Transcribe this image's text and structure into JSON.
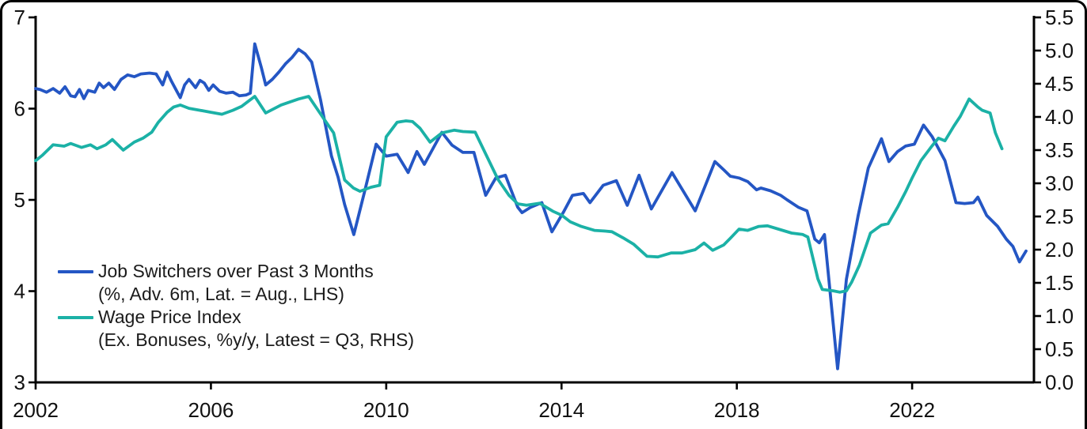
{
  "window": {
    "background": "#ffffff",
    "frame_border_color": "#000000"
  },
  "chart_data": {
    "type": "line",
    "title": "",
    "grid": false,
    "legend_position": "inside-bottom-left",
    "axis_color": "#000000",
    "x_axis": {
      "range": [
        2002,
        2024.78
      ],
      "ticks": [
        [
          2002,
          "2002"
        ],
        [
          2006,
          "2006"
        ],
        [
          2010,
          "2010"
        ],
        [
          2014,
          "2014"
        ],
        [
          2018,
          "2018"
        ],
        [
          2022,
          "2022"
        ]
      ]
    },
    "left_axis": {
      "range": [
        3,
        7
      ],
      "ticks": [
        [
          7,
          "7"
        ],
        [
          6,
          "6"
        ],
        [
          5,
          "5"
        ],
        [
          4,
          "4"
        ],
        [
          3,
          "3"
        ]
      ]
    },
    "right_axis": {
      "range": [
        0,
        5.5
      ],
      "ticks": [
        [
          5.5,
          "5.5"
        ],
        [
          5.0,
          "5.0"
        ],
        [
          4.5,
          "4.5"
        ],
        [
          4.0,
          "4.0"
        ],
        [
          3.5,
          "3.5"
        ],
        [
          3.0,
          "3.0"
        ],
        [
          2.5,
          "2.5"
        ],
        [
          2.0,
          "2.0"
        ],
        [
          1.5,
          "1.5"
        ],
        [
          1.0,
          "1.0"
        ],
        [
          0.5,
          "0.5"
        ],
        [
          0.0,
          "0.0"
        ]
      ]
    },
    "series": [
      {
        "name": "Job Switchers over Past 3 Months",
        "axis": "left",
        "color": "#2456C4",
        "points": [
          [
            2002.0,
            6.22
          ],
          [
            2002.1,
            6.21
          ],
          [
            2002.25,
            6.18
          ],
          [
            2002.4,
            6.22
          ],
          [
            2002.55,
            6.17
          ],
          [
            2002.67,
            6.24
          ],
          [
            2002.8,
            6.14
          ],
          [
            2002.9,
            6.13
          ],
          [
            2003.0,
            6.21
          ],
          [
            2003.1,
            6.11
          ],
          [
            2003.2,
            6.2
          ],
          [
            2003.35,
            6.18
          ],
          [
            2003.45,
            6.28
          ],
          [
            2003.55,
            6.23
          ],
          [
            2003.67,
            6.28
          ],
          [
            2003.8,
            6.21
          ],
          [
            2003.95,
            6.32
          ],
          [
            2004.1,
            6.37
          ],
          [
            2004.25,
            6.35
          ],
          [
            2004.4,
            6.38
          ],
          [
            2004.6,
            6.39
          ],
          [
            2004.75,
            6.38
          ],
          [
            2004.9,
            6.26
          ],
          [
            2005.0,
            6.4
          ],
          [
            2005.1,
            6.3
          ],
          [
            2005.2,
            6.21
          ],
          [
            2005.3,
            6.12
          ],
          [
            2005.4,
            6.26
          ],
          [
            2005.5,
            6.32
          ],
          [
            2005.65,
            6.23
          ],
          [
            2005.75,
            6.31
          ],
          [
            2005.85,
            6.28
          ],
          [
            2005.95,
            6.2
          ],
          [
            2006.05,
            6.26
          ],
          [
            2006.2,
            6.19
          ],
          [
            2006.35,
            6.17
          ],
          [
            2006.5,
            6.18
          ],
          [
            2006.65,
            6.14
          ],
          [
            2006.8,
            6.15
          ],
          [
            2006.9,
            6.17
          ],
          [
            2007.0,
            6.71
          ],
          [
            2007.15,
            6.45
          ],
          [
            2007.25,
            6.26
          ],
          [
            2007.4,
            6.32
          ],
          [
            2007.55,
            6.4
          ],
          [
            2007.7,
            6.49
          ],
          [
            2007.85,
            6.56
          ],
          [
            2008.0,
            6.65
          ],
          [
            2008.15,
            6.6
          ],
          [
            2008.3,
            6.51
          ],
          [
            2008.5,
            6.1
          ],
          [
            2008.75,
            5.48
          ],
          [
            2008.9,
            5.25
          ],
          [
            2009.05,
            4.95
          ],
          [
            2009.26,
            4.62
          ],
          [
            2009.5,
            5.08
          ],
          [
            2009.77,
            5.61
          ],
          [
            2010.0,
            5.48
          ],
          [
            2010.25,
            5.5
          ],
          [
            2010.5,
            5.3
          ],
          [
            2010.7,
            5.53
          ],
          [
            2010.87,
            5.39
          ],
          [
            2011.27,
            5.74
          ],
          [
            2011.5,
            5.6
          ],
          [
            2011.75,
            5.52
          ],
          [
            2012.0,
            5.52
          ],
          [
            2012.27,
            5.05
          ],
          [
            2012.5,
            5.24
          ],
          [
            2012.72,
            5.27
          ],
          [
            2013.0,
            4.92
          ],
          [
            2013.1,
            4.86
          ],
          [
            2013.3,
            4.92
          ],
          [
            2013.55,
            4.97
          ],
          [
            2013.78,
            4.65
          ],
          [
            2014.05,
            4.87
          ],
          [
            2014.25,
            5.05
          ],
          [
            2014.5,
            5.07
          ],
          [
            2014.65,
            4.97
          ],
          [
            2014.95,
            5.16
          ],
          [
            2015.25,
            5.21
          ],
          [
            2015.5,
            4.94
          ],
          [
            2015.77,
            5.27
          ],
          [
            2016.05,
            4.9
          ],
          [
            2016.52,
            5.3
          ],
          [
            2017.05,
            4.88
          ],
          [
            2017.5,
            5.42
          ],
          [
            2017.7,
            5.33
          ],
          [
            2017.85,
            5.26
          ],
          [
            2018.05,
            5.24
          ],
          [
            2018.25,
            5.2
          ],
          [
            2018.45,
            5.11
          ],
          [
            2018.55,
            5.13
          ],
          [
            2018.77,
            5.1
          ],
          [
            2019.0,
            5.05
          ],
          [
            2019.15,
            5.0
          ],
          [
            2019.4,
            4.92
          ],
          [
            2019.6,
            4.88
          ],
          [
            2019.78,
            4.57
          ],
          [
            2019.88,
            4.53
          ],
          [
            2020.0,
            4.62
          ],
          [
            2020.3,
            3.15
          ],
          [
            2020.5,
            4.13
          ],
          [
            2020.77,
            4.83
          ],
          [
            2021.0,
            5.35
          ],
          [
            2021.3,
            5.67
          ],
          [
            2021.47,
            5.42
          ],
          [
            2021.67,
            5.53
          ],
          [
            2021.85,
            5.59
          ],
          [
            2022.05,
            5.61
          ],
          [
            2022.26,
            5.82
          ],
          [
            2022.46,
            5.69
          ],
          [
            2022.75,
            5.43
          ],
          [
            2023.0,
            4.97
          ],
          [
            2023.2,
            4.96
          ],
          [
            2023.4,
            4.97
          ],
          [
            2023.5,
            5.03
          ],
          [
            2023.7,
            4.83
          ],
          [
            2023.95,
            4.71
          ],
          [
            2024.15,
            4.57
          ],
          [
            2024.3,
            4.49
          ],
          [
            2024.45,
            4.32
          ],
          [
            2024.6,
            4.44
          ]
        ]
      },
      {
        "name": "Wage Price Index",
        "axis": "right",
        "color": "#1BB1A6",
        "points": [
          [
            2002.0,
            3.34
          ],
          [
            2002.15,
            3.42
          ],
          [
            2002.4,
            3.58
          ],
          [
            2002.65,
            3.56
          ],
          [
            2002.8,
            3.6
          ],
          [
            2003.05,
            3.54
          ],
          [
            2003.25,
            3.58
          ],
          [
            2003.4,
            3.52
          ],
          [
            2003.6,
            3.58
          ],
          [
            2003.75,
            3.66
          ],
          [
            2004.0,
            3.5
          ],
          [
            2004.25,
            3.62
          ],
          [
            2004.45,
            3.68
          ],
          [
            2004.65,
            3.77
          ],
          [
            2004.8,
            3.92
          ],
          [
            2005.0,
            4.07
          ],
          [
            2005.15,
            4.15
          ],
          [
            2005.3,
            4.18
          ],
          [
            2005.5,
            4.13
          ],
          [
            2005.75,
            4.1
          ],
          [
            2006.0,
            4.07
          ],
          [
            2006.25,
            4.04
          ],
          [
            2006.5,
            4.1
          ],
          [
            2006.7,
            4.16
          ],
          [
            2007.0,
            4.31
          ],
          [
            2007.25,
            4.06
          ],
          [
            2007.6,
            4.18
          ],
          [
            2008.0,
            4.27
          ],
          [
            2008.23,
            4.31
          ],
          [
            2008.6,
            3.95
          ],
          [
            2008.8,
            3.76
          ],
          [
            2009.05,
            3.05
          ],
          [
            2009.25,
            2.93
          ],
          [
            2009.4,
            2.88
          ],
          [
            2009.65,
            2.94
          ],
          [
            2009.85,
            2.97
          ],
          [
            2010.0,
            3.7
          ],
          [
            2010.25,
            3.92
          ],
          [
            2010.45,
            3.94
          ],
          [
            2010.6,
            3.93
          ],
          [
            2010.77,
            3.83
          ],
          [
            2011.0,
            3.62
          ],
          [
            2011.27,
            3.76
          ],
          [
            2011.55,
            3.8
          ],
          [
            2011.75,
            3.78
          ],
          [
            2012.03,
            3.77
          ],
          [
            2012.55,
            3.06
          ],
          [
            2012.8,
            2.82
          ],
          [
            2013.0,
            2.69
          ],
          [
            2013.2,
            2.67
          ],
          [
            2013.5,
            2.7
          ],
          [
            2013.8,
            2.58
          ],
          [
            2014.0,
            2.52
          ],
          [
            2014.2,
            2.42
          ],
          [
            2014.45,
            2.35
          ],
          [
            2014.75,
            2.29
          ],
          [
            2015.0,
            2.28
          ],
          [
            2015.15,
            2.27
          ],
          [
            2015.4,
            2.18
          ],
          [
            2015.65,
            2.08
          ],
          [
            2015.95,
            1.9
          ],
          [
            2016.2,
            1.89
          ],
          [
            2016.5,
            1.95
          ],
          [
            2016.75,
            1.95
          ],
          [
            2017.05,
            2.0
          ],
          [
            2017.25,
            2.1
          ],
          [
            2017.45,
            1.99
          ],
          [
            2017.7,
            2.07
          ],
          [
            2017.85,
            2.17
          ],
          [
            2018.05,
            2.31
          ],
          [
            2018.25,
            2.29
          ],
          [
            2018.5,
            2.35
          ],
          [
            2018.7,
            2.36
          ],
          [
            2018.95,
            2.31
          ],
          [
            2019.25,
            2.25
          ],
          [
            2019.5,
            2.23
          ],
          [
            2019.62,
            2.19
          ],
          [
            2019.85,
            1.56
          ],
          [
            2019.95,
            1.4
          ],
          [
            2020.2,
            1.38
          ],
          [
            2020.35,
            1.36
          ],
          [
            2020.5,
            1.38
          ],
          [
            2020.62,
            1.51
          ],
          [
            2020.8,
            1.77
          ],
          [
            2021.05,
            2.25
          ],
          [
            2021.3,
            2.37
          ],
          [
            2021.45,
            2.39
          ],
          [
            2021.67,
            2.64
          ],
          [
            2021.85,
            2.87
          ],
          [
            2022.0,
            3.08
          ],
          [
            2022.2,
            3.34
          ],
          [
            2022.45,
            3.56
          ],
          [
            2022.6,
            3.68
          ],
          [
            2022.75,
            3.64
          ],
          [
            2022.95,
            3.86
          ],
          [
            2023.1,
            4.01
          ],
          [
            2023.3,
            4.27
          ],
          [
            2023.5,
            4.15
          ],
          [
            2023.6,
            4.1
          ],
          [
            2023.78,
            4.06
          ],
          [
            2023.9,
            3.76
          ],
          [
            2024.05,
            3.52
          ]
        ]
      }
    ],
    "legend": [
      {
        "label": "Job Switchers over Past 3 Months",
        "sublabel": "(%, Adv. 6m, Lat. = Aug., LHS)",
        "color": "#2456C4"
      },
      {
        "label": "Wage Price Index",
        "sublabel": "(Ex. Bonuses, %y/y, Latest = Q3, RHS)",
        "color": "#1BB1A6"
      }
    ]
  }
}
